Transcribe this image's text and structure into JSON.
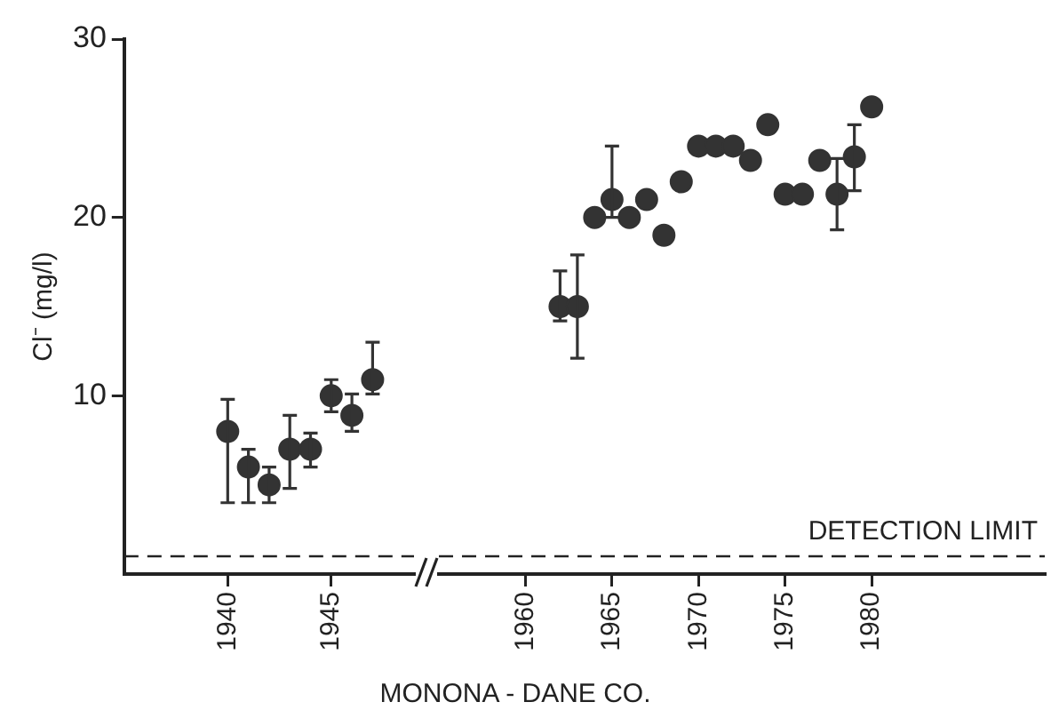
{
  "chart_data": [
    {
      "type": "scatter",
      "ylabel": "Cl⁻ (mg/l)",
      "xlim": [
        1935,
        1949
      ],
      "xticks": [
        1940,
        1945
      ],
      "ylim": [
        0,
        30
      ],
      "yticks": [
        10,
        20,
        30
      ],
      "marker": "circle",
      "series": [
        {
          "color": "#333333",
          "x": [
            1940,
            1941,
            1942,
            1943,
            1944,
            1945,
            1946,
            1947
          ],
          "values": [
            8,
            6,
            5,
            7,
            7,
            10,
            8.9,
            10.9
          ],
          "errors": [
            [
              4,
              9.8
            ],
            [
              4,
              7
            ],
            [
              4,
              6
            ],
            [
              4.8,
              8.9
            ],
            [
              6,
              7.9
            ],
            [
              9.1,
              10.9
            ],
            [
              8,
              10.1
            ],
            [
              10.1,
              13
            ]
          ]
        }
      ],
      "ref_lines": [
        {
          "axis": "y",
          "value": 1,
          "line_style": "dashed"
        }
      ]
    },
    {
      "type": "scatter",
      "xlabel": "MONONA - DANE CO.",
      "xlim": [
        1955,
        1990
      ],
      "xticks": [
        1960,
        1965,
        1970,
        1975,
        1980
      ],
      "ylim": [
        0,
        30
      ],
      "tick_labels": "x",
      "marker": "circle",
      "series": [
        {
          "color": "#333333",
          "x": [
            1962,
            1963,
            1964,
            1965,
            1966,
            1967,
            1968,
            1969,
            1970,
            1971,
            1972,
            1973,
            1974,
            1975,
            1976,
            1977,
            1978,
            1979,
            1980
          ],
          "values": [
            15,
            15,
            20,
            21,
            20,
            21,
            19,
            22,
            24,
            24,
            24,
            23.2,
            25.2,
            21.3,
            21.3,
            23.2,
            21.3,
            23.4,
            26.2
          ],
          "errors": [
            [
              14.2,
              17
            ],
            [
              12.1,
              17.9
            ],
            null,
            [
              20,
              24
            ],
            null,
            null,
            null,
            null,
            null,
            null,
            null,
            null,
            null,
            null,
            null,
            null,
            [
              19.3,
              23.3
            ],
            [
              21.5,
              25.2
            ],
            null
          ]
        }
      ],
      "ref_lines": [
        {
          "axis": "y",
          "value": 1,
          "label": "DETECTION LIMIT",
          "line_style": "dashed"
        }
      ]
    }
  ]
}
